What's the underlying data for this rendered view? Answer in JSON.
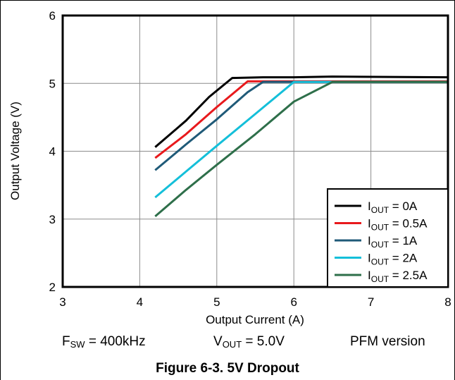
{
  "chart_data": {
    "type": "line",
    "xlabel": "Output Current (A)",
    "ylabel": "Output Voltage (V)",
    "xlim": [
      3,
      8
    ],
    "ylim": [
      2,
      6
    ],
    "xticks": [
      "3",
      "4",
      "5",
      "6",
      "7",
      "8"
    ],
    "yticks": [
      "2",
      "3",
      "4",
      "5",
      "6"
    ],
    "grid": true,
    "legend_position": "bottom-right",
    "series": [
      {
        "name_main": "I",
        "name_sub": "OUT",
        "name_rest": " = 0A",
        "color": "#000000",
        "points": [
          [
            4.2,
            4.06
          ],
          [
            4.6,
            4.45
          ],
          [
            4.9,
            4.8
          ],
          [
            5.2,
            5.08
          ],
          [
            5.6,
            5.09
          ],
          [
            6.0,
            5.09
          ],
          [
            6.5,
            5.1
          ],
          [
            8.0,
            5.09
          ]
        ]
      },
      {
        "name_main": "I",
        "name_sub": "OUT",
        "name_rest": " = 0.5A",
        "color": "#e8191c",
        "points": [
          [
            4.2,
            3.9
          ],
          [
            4.6,
            4.25
          ],
          [
            5.0,
            4.65
          ],
          [
            5.4,
            5.03
          ],
          [
            6.0,
            5.03
          ],
          [
            8.0,
            5.03
          ]
        ]
      },
      {
        "name_main": "I",
        "name_sub": "OUT",
        "name_rest": " = 1A",
        "color": "#1f5a78",
        "points": [
          [
            4.2,
            3.72
          ],
          [
            4.6,
            4.1
          ],
          [
            5.0,
            4.47
          ],
          [
            5.4,
            4.87
          ],
          [
            5.6,
            5.02
          ],
          [
            6.0,
            5.02
          ],
          [
            8.0,
            5.02
          ]
        ]
      },
      {
        "name_main": "I",
        "name_sub": "OUT",
        "name_rest": " = 2A",
        "color": "#14bfd9",
        "points": [
          [
            4.2,
            3.32
          ],
          [
            4.6,
            3.7
          ],
          [
            5.0,
            4.08
          ],
          [
            5.5,
            4.55
          ],
          [
            6.0,
            5.02
          ],
          [
            8.0,
            5.02
          ]
        ]
      },
      {
        "name_main": "I",
        "name_sub": "OUT",
        "name_rest": " = 2.5A",
        "color": "#2e6f4a",
        "points": [
          [
            4.2,
            3.04
          ],
          [
            4.6,
            3.43
          ],
          [
            5.0,
            3.8
          ],
          [
            5.5,
            4.25
          ],
          [
            6.0,
            4.73
          ],
          [
            6.5,
            5.02
          ],
          [
            8.0,
            5.02
          ]
        ]
      }
    ]
  },
  "conditions": {
    "fsw_main": "F",
    "fsw_sub": "SW",
    "fsw_rest": " = 400kHz",
    "vout_main": "V",
    "vout_sub": "OUT",
    "vout_rest": " = 5.0V",
    "version": "PFM version"
  },
  "caption": "Figure 6-3. 5V Dropout"
}
